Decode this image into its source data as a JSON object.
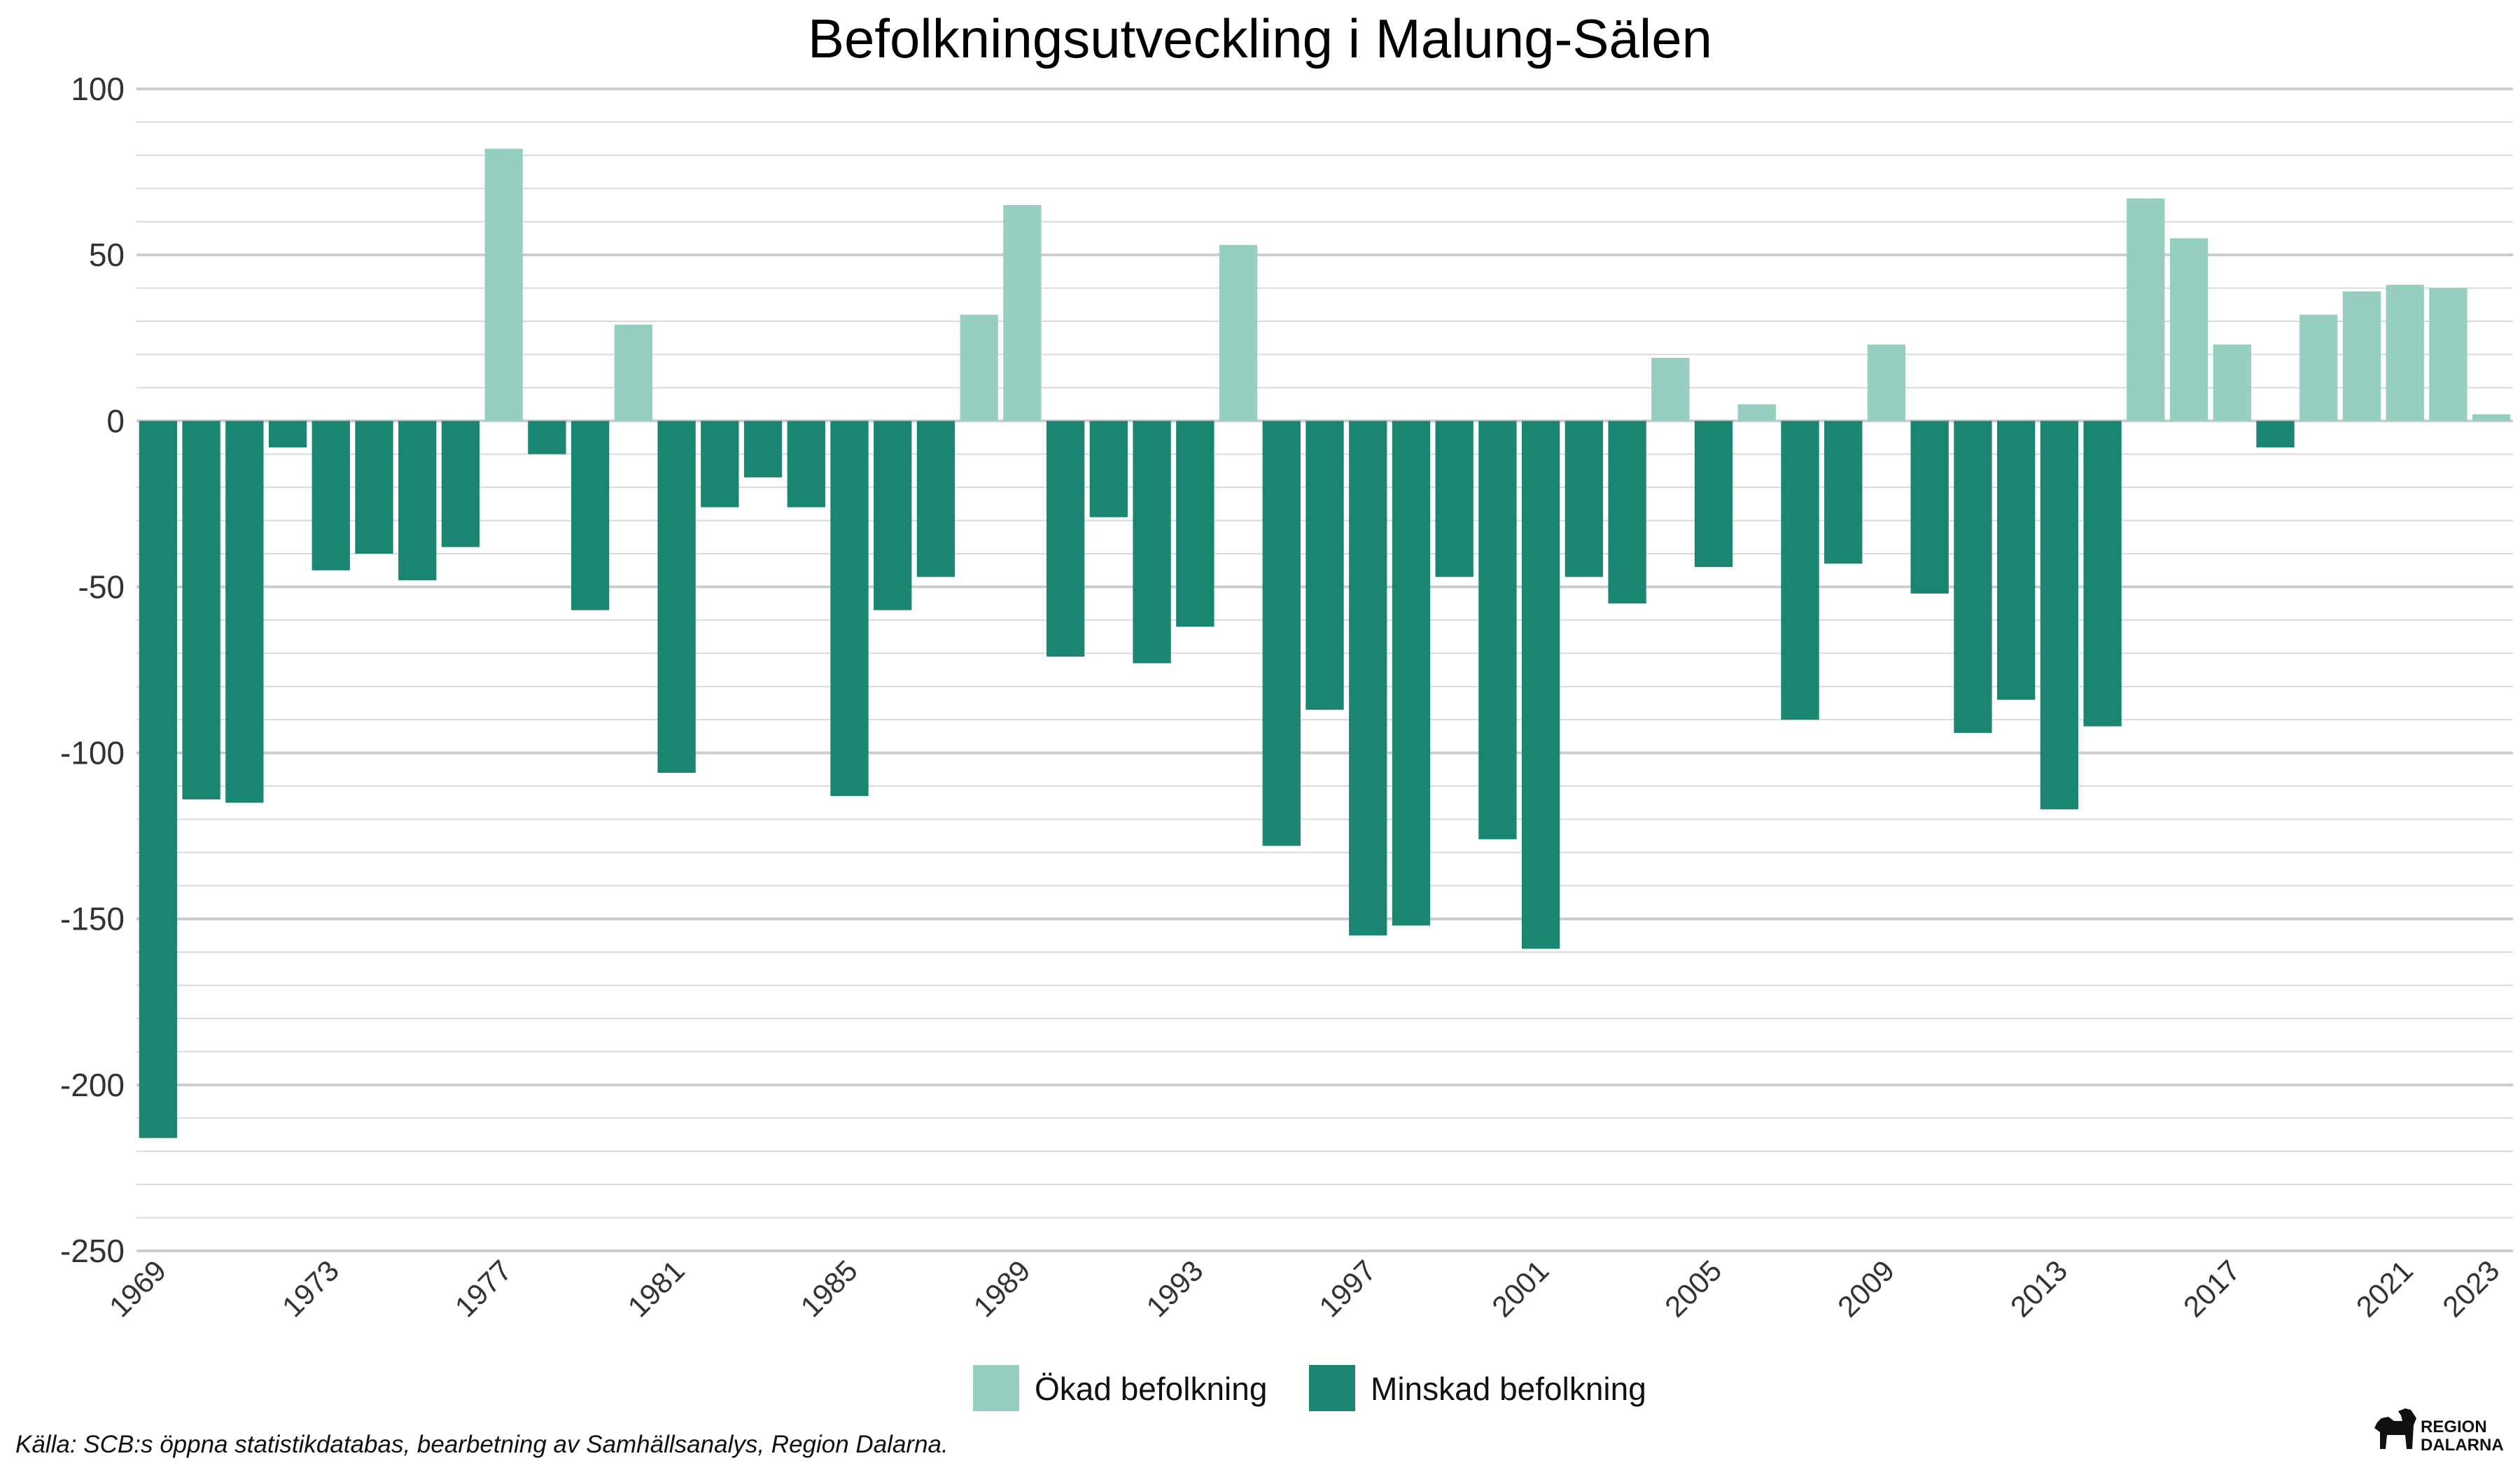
{
  "title": "Befolkningsutveckling i Malung-Sälen",
  "source": "Källa: SCB:s öppna statistikdatabas, bearbetning av Samhällsanalys, Region Dalarna.",
  "logo": {
    "line1": "REGION",
    "line2": "DALARNA",
    "icon": "dala-horse-icon"
  },
  "legend": [
    {
      "label": "Ökad befolkning",
      "color": "#96cfbf"
    },
    {
      "label": "Minskad befolkning",
      "color": "#1a8672"
    }
  ],
  "chart_data": {
    "type": "bar",
    "title": "Befolkningsutveckling i Malung-Sälen",
    "xlabel": "",
    "ylabel": "",
    "ylim": [
      -250,
      100
    ],
    "yticks": [
      100,
      50,
      0,
      -50,
      -100,
      -150,
      -200,
      -250
    ],
    "xticks": [
      "1969",
      "1973",
      "1977",
      "1981",
      "1985",
      "1989",
      "1993",
      "1997",
      "2001",
      "2005",
      "2009",
      "2013",
      "2017",
      "2021",
      "2023"
    ],
    "grid": true,
    "legend_position": "bottom",
    "positive_color": "#96cfbf",
    "negative_color": "#1a8672",
    "categories": [
      "1969",
      "1970",
      "1971",
      "1972",
      "1973",
      "1974",
      "1975",
      "1976",
      "1977",
      "1978",
      "1979",
      "1980",
      "1981",
      "1982",
      "1983",
      "1984",
      "1985",
      "1986",
      "1987",
      "1988",
      "1989",
      "1990",
      "1991",
      "1992",
      "1993",
      "1994",
      "1995",
      "1996",
      "1997",
      "1998",
      "1999",
      "2000",
      "2001",
      "2002",
      "2003",
      "2004",
      "2005",
      "2006",
      "2007",
      "2008",
      "2009",
      "2010",
      "2011",
      "2012",
      "2013",
      "2014",
      "2015",
      "2016",
      "2017",
      "2018",
      "2019",
      "2020",
      "2021",
      "2022",
      "2023"
    ],
    "values": [
      -216,
      -114,
      -115,
      -8,
      -45,
      -40,
      -48,
      -38,
      82,
      -10,
      -57,
      29,
      -106,
      -26,
      -17,
      -26,
      -113,
      -57,
      -47,
      32,
      65,
      -71,
      -29,
      -73,
      -62,
      53,
      -128,
      -87,
      -155,
      -152,
      -47,
      -126,
      -159,
      -47,
      -55,
      19,
      -44,
      5,
      -90,
      -43,
      23,
      -52,
      -94,
      -84,
      -117,
      -92,
      67,
      55,
      23,
      -8,
      32,
      39,
      41,
      40,
      2
    ]
  }
}
